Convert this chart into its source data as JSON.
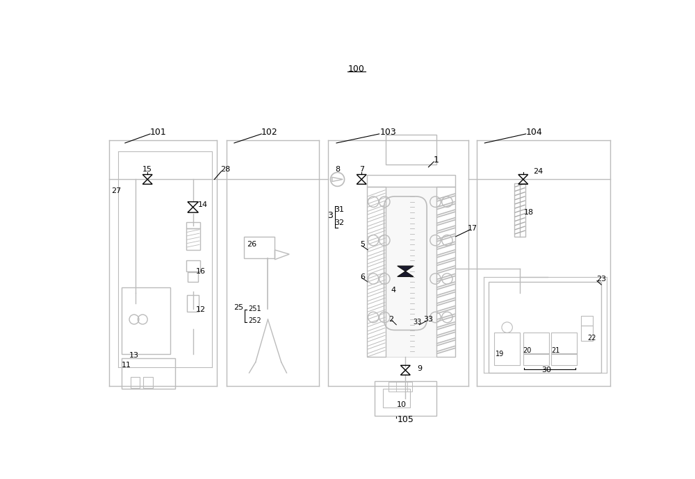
{
  "bg_color": "#ffffff",
  "lc": "#999999",
  "lc2": "#bbbbbb",
  "black": "#000000",
  "gray_hatch": "#aaaaaa",
  "dark_navy": "#1a1a2e"
}
